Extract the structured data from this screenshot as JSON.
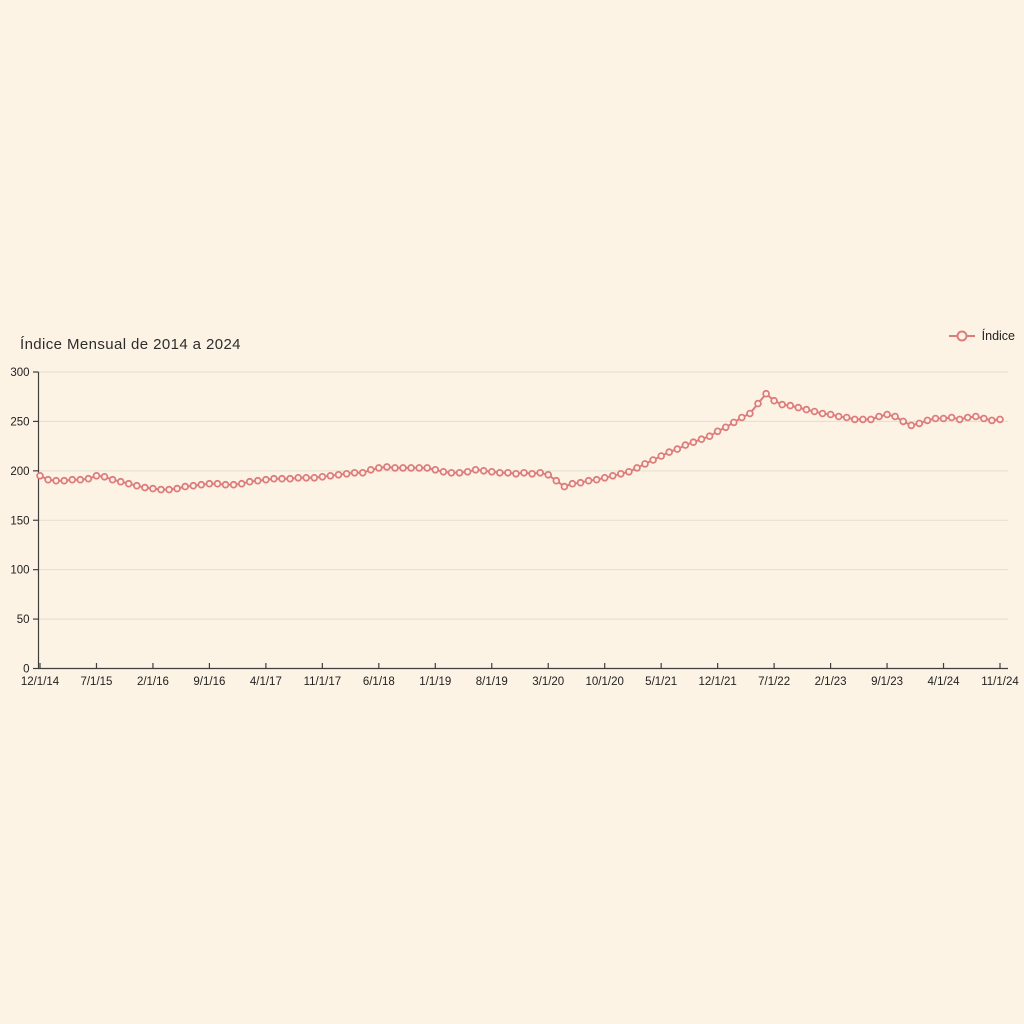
{
  "style": {
    "background": "#fdf3e4",
    "line_color": "#dd7c7c",
    "marker_fill": "#fdf3e4",
    "grid_color": "#e3ddcf",
    "axis_color": "#3f3f3f",
    "tick_text_color": "#222222",
    "title_color": "#2d2d2d"
  },
  "chart_data": {
    "type": "line",
    "title": "Índice Mensual de 2014 a 2024",
    "legend_position": "top-right",
    "grid": true,
    "ylim": [
      0,
      300
    ],
    "y_ticks": [
      0,
      50,
      100,
      150,
      200,
      250,
      300
    ],
    "x_tick_every": 7,
    "x_tick_labels": [
      "12/1/14",
      "7/1/15",
      "2/1/16",
      "9/1/16",
      "4/1/17",
      "11/1/17",
      "6/1/18",
      "1/1/19",
      "8/1/19",
      "3/1/20",
      "10/1/20",
      "5/1/21",
      "12/1/21",
      "7/1/22",
      "2/1/23",
      "9/1/23",
      "4/1/24",
      "11/1/24"
    ],
    "series": [
      {
        "name": "Índice",
        "marker": "open-circle",
        "values": [
          195,
          191,
          190,
          190,
          191,
          191,
          192,
          195,
          194,
          191,
          189,
          187,
          185,
          183,
          182,
          181,
          181,
          182,
          184,
          185,
          186,
          187,
          187,
          186,
          186,
          187,
          189,
          190,
          191,
          192,
          192,
          192,
          193,
          193,
          193,
          194,
          195,
          196,
          197,
          198,
          198,
          201,
          203,
          204,
          203,
          203,
          203,
          203,
          203,
          201,
          199,
          198,
          198,
          199,
          201,
          200,
          199,
          198,
          198,
          197,
          198,
          197,
          198,
          196,
          190,
          184,
          187,
          188,
          190,
          191,
          193,
          195,
          197,
          199,
          203,
          207,
          211,
          215,
          219,
          222,
          226,
          229,
          232,
          235,
          240,
          244,
          249,
          254,
          258,
          268,
          278,
          271,
          267,
          266,
          264,
          262,
          260,
          258,
          257,
          255,
          254,
          252,
          252,
          252,
          255,
          257,
          255,
          250,
          246,
          248,
          251,
          253,
          253,
          254,
          252,
          254,
          255,
          253,
          251,
          252
        ]
      }
    ]
  }
}
